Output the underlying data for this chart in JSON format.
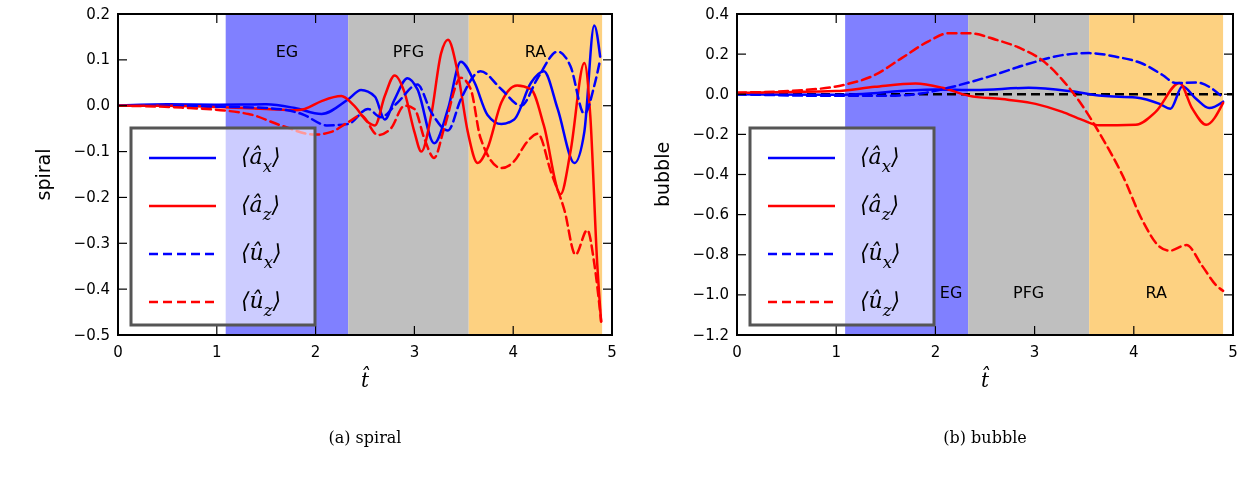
{
  "chart_data": [
    {
      "type": "line",
      "ylabel": "spiral",
      "xlabel": "t̂",
      "xlim": [
        0,
        5
      ],
      "xticks": [
        0,
        1,
        2,
        3,
        4,
        5
      ],
      "ylim": [
        -0.5,
        0.2
      ],
      "yticks": [
        {
          "value": -0.5,
          "label": "−0.5"
        },
        {
          "value": -0.4,
          "label": "−0.4"
        },
        {
          "value": -0.3,
          "label": "−0.3"
        },
        {
          "value": -0.2,
          "label": "−0.2"
        },
        {
          "value": -0.1,
          "label": "−0.1"
        },
        {
          "value": 0,
          "label": "0.0"
        },
        {
          "value": 0.1,
          "label": "0.1"
        },
        {
          "value": 0.2,
          "label": "0.2"
        }
      ],
      "legend": "bottom left",
      "grid": false,
      "bands": [
        {
          "axis": "x",
          "from": 1.09,
          "to": 2.33,
          "color": "#8080ff",
          "label": "EG"
        },
        {
          "axis": "x",
          "from": 2.33,
          "to": 3.55,
          "color": "#bfbfbf",
          "label": "PFG"
        },
        {
          "axis": "x",
          "from": 3.55,
          "to": 4.9,
          "color": "#fdd181",
          "label": "RA"
        }
      ],
      "annotations": [
        "(a) spiral"
      ],
      "series": [
        {
          "name": "⟨â$_{x}$⟩",
          "color": "#0000ff",
          "line_style": "solid",
          "x": [
            0,
            0.5,
            1.0,
            1.5,
            1.79,
            2.06,
            2.33,
            2.46,
            2.6,
            2.7,
            2.8,
            2.93,
            3.03,
            3.2,
            3.34,
            3.47,
            3.61,
            3.74,
            3.88,
            4.01,
            4.18,
            4.31,
            4.45,
            4.62,
            4.72,
            4.82,
            4.88
          ],
          "values": [
            0,
            0.003,
            0.002,
            0.003,
            -0.005,
            -0.018,
            0.014,
            0.034,
            0.02,
            -0.03,
            0.014,
            0.06,
            0.036,
            -0.082,
            -0.007,
            0.096,
            0.05,
            -0.02,
            -0.04,
            -0.03,
            0.05,
            0.075,
            -0.007,
            -0.125,
            -0.057,
            0.175,
            0.107
          ]
        },
        {
          "name": "⟨â$_{z}$⟩",
          "color": "#ff0000",
          "line_style": "solid",
          "x": [
            0,
            0.5,
            1.0,
            1.5,
            1.79,
            1.89,
            2.06,
            2.26,
            2.39,
            2.53,
            2.6,
            2.7,
            2.8,
            2.9,
            3.0,
            3.07,
            3.17,
            3.27,
            3.34,
            3.44,
            3.54,
            3.64,
            3.74,
            3.88,
            4.04,
            4.18,
            4.31,
            4.48,
            4.58,
            4.72,
            4.78,
            4.85,
            4.89
          ],
          "values": [
            0,
            0,
            -0.003,
            -0.007,
            -0.01,
            -0.007,
            0.01,
            0.021,
            0,
            -0.036,
            -0.043,
            0.021,
            0.066,
            0.029,
            -0.057,
            -0.1,
            -0.021,
            0.114,
            0.144,
            0.071,
            -0.057,
            -0.125,
            -0.093,
            0.007,
            0.044,
            0.036,
            -0.043,
            -0.193,
            -0.1,
            0.093,
            -0.021,
            -0.343,
            -0.471
          ]
        },
        {
          "name": "⟨û$_{x}$⟩",
          "color": "#0000ff",
          "line_style": "dashed",
          "x": [
            0,
            0.5,
            1.0,
            1.5,
            1.86,
            2.12,
            2.33,
            2.53,
            2.66,
            2.83,
            3.03,
            3.17,
            3.34,
            3.47,
            3.67,
            3.88,
            4.08,
            4.25,
            4.45,
            4.58,
            4.72,
            4.82,
            4.88
          ],
          "values": [
            0,
            0,
            -0.002,
            -0.005,
            -0.018,
            -0.043,
            -0.04,
            -0.007,
            -0.025,
            0.007,
            0.046,
            -0.014,
            -0.054,
            0.014,
            0.075,
            0.036,
            0,
            0.061,
            0.118,
            0.086,
            -0.018,
            0.043,
            0.1
          ]
        },
        {
          "name": "⟨û$_{z}$⟩",
          "color": "#ff0000",
          "line_style": "dashed",
          "x": [
            0,
            0.64,
            1.32,
            1.65,
            1.99,
            2.16,
            2.33,
            2.46,
            2.63,
            2.76,
            2.9,
            3.0,
            3.1,
            3.2,
            3.3,
            3.47,
            3.57,
            3.67,
            3.88,
            4.01,
            4.14,
            4.25,
            4.38,
            4.52,
            4.63,
            4.75,
            4.82,
            4.89
          ],
          "values": [
            0,
            -0.004,
            -0.018,
            -0.043,
            -0.063,
            -0.057,
            -0.036,
            -0.021,
            -0.064,
            -0.05,
            0,
            -0.007,
            -0.071,
            -0.114,
            -0.05,
            0.061,
            0.036,
            -0.071,
            -0.136,
            -0.121,
            -0.079,
            -0.061,
            -0.143,
            -0.229,
            -0.325,
            -0.271,
            -0.343,
            -0.47
          ]
        }
      ]
    },
    {
      "type": "line",
      "ylabel": "bubble",
      "xlabel": "t̂",
      "xlim": [
        0,
        5
      ],
      "xticks": [
        0,
        1,
        2,
        3,
        4,
        5
      ],
      "ylim": [
        -1.2,
        0.4
      ],
      "yticks": [
        {
          "value": -1.2,
          "label": "−1.2"
        },
        {
          "value": -1.0,
          "label": "−1.0"
        },
        {
          "value": -0.8,
          "label": "−0.8"
        },
        {
          "value": -0.6,
          "label": "−0.6"
        },
        {
          "value": -0.4,
          "label": "−0.4"
        },
        {
          "value": -0.2,
          "label": "−0.2"
        },
        {
          "value": 0,
          "label": "0.0"
        },
        {
          "value": 0.2,
          "label": "0.2"
        },
        {
          "value": 0.4,
          "label": "0.4"
        }
      ],
      "legend": "bottom left",
      "grid": false,
      "bands": [
        {
          "axis": "x",
          "from": 1.09,
          "to": 2.33,
          "color": "#8080ff",
          "label": "EG"
        },
        {
          "axis": "x",
          "from": 2.33,
          "to": 3.55,
          "color": "#bfbfbf",
          "label": "PFG"
        },
        {
          "axis": "x",
          "from": 3.55,
          "to": 4.9,
          "color": "#fdd181",
          "label": "RA"
        }
      ],
      "ref_lines": [
        {
          "axis": "y",
          "value": 0,
          "color": "#000000",
          "line_style": "dashed"
        }
      ],
      "annotations": [
        "(b) bubble"
      ],
      "series": [
        {
          "name": "⟨â$_{x}$⟩",
          "color": "#0000ff",
          "line_style": "solid",
          "x": [
            0,
            0.99,
            2.0,
            2.4,
            2.94,
            3.35,
            3.68,
            4.02,
            4.26,
            4.37,
            4.49,
            4.63,
            4.76,
            4.9
          ],
          "values": [
            0,
            -0.003,
            0.024,
            0.021,
            0.032,
            0.016,
            -0.008,
            -0.016,
            -0.048,
            -0.072,
            0.04,
            -0.024,
            -0.069,
            -0.037
          ]
        },
        {
          "name": "⟨â$_{z}$⟩",
          "color": "#ff0000",
          "line_style": "solid",
          "x": [
            0,
            0.99,
            1.39,
            1.8,
            2.07,
            2.34,
            2.67,
            3.01,
            3.28,
            3.48,
            3.65,
            4.02,
            4.22,
            4.46,
            4.59,
            4.73,
            4.9
          ],
          "values": [
            0.008,
            0.016,
            0.037,
            0.053,
            0.032,
            -0.008,
            -0.024,
            -0.048,
            -0.088,
            -0.128,
            -0.155,
            -0.152,
            -0.088,
            0.056,
            -0.072,
            -0.152,
            -0.043
          ]
        },
        {
          "name": "⟨û$_{x}$⟩",
          "color": "#0000ff",
          "line_style": "dashed",
          "x": [
            0,
            0.99,
            1.53,
            1.87,
            2.13,
            2.54,
            2.94,
            3.28,
            3.55,
            3.82,
            4.09,
            4.29,
            4.42,
            4.63,
            4.76,
            4.88
          ],
          "values": [
            0,
            -0.008,
            -0.008,
            0.005,
            0.032,
            0.088,
            0.152,
            0.195,
            0.205,
            0.187,
            0.152,
            0.096,
            0.056,
            0.059,
            0.037,
            -0.008
          ]
        },
        {
          "name": "⟨û$_{z}$⟩",
          "color": "#ff0000",
          "line_style": "dashed",
          "x": [
            0,
            0.65,
            1.09,
            1.39,
            1.66,
            1.93,
            2.13,
            2.34,
            2.61,
            2.88,
            3.08,
            3.28,
            3.48,
            3.68,
            3.89,
            4.09,
            4.26,
            4.36,
            4.53,
            4.69,
            4.83,
            4.9
          ],
          "values": [
            0.008,
            0.02,
            0.048,
            0.096,
            0.18,
            0.264,
            0.304,
            0.304,
            0.272,
            0.224,
            0.168,
            0.072,
            -0.056,
            -0.216,
            -0.408,
            -0.632,
            -0.76,
            -0.78,
            -0.752,
            -0.856,
            -0.952,
            -0.98
          ]
        }
      ]
    }
  ]
}
